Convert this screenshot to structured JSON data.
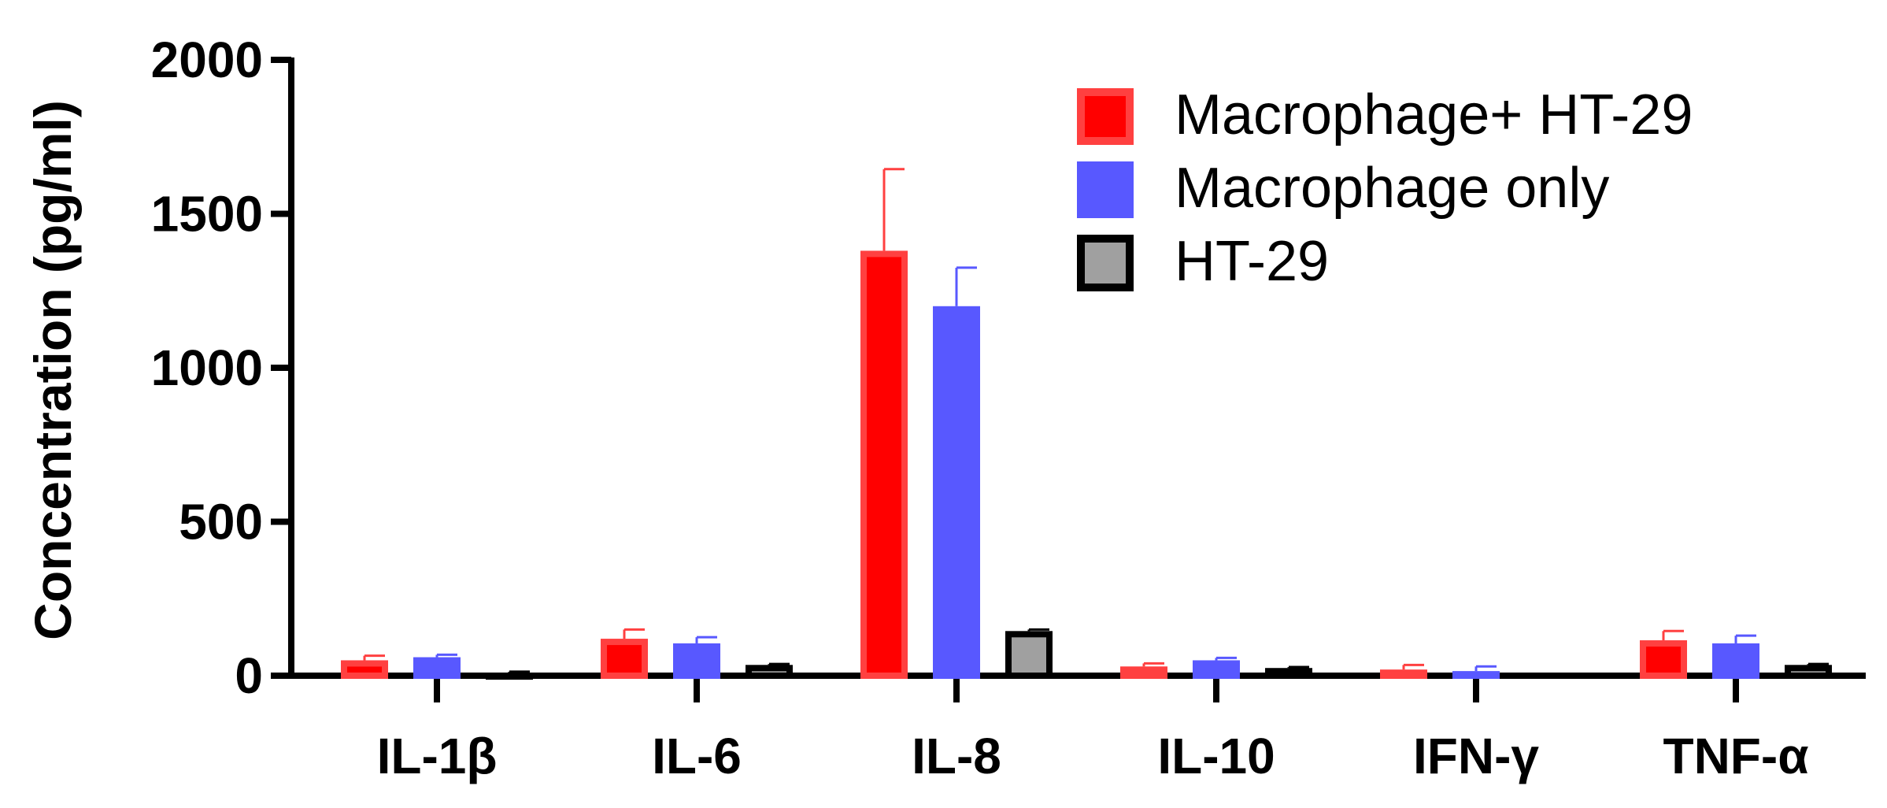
{
  "chart_data": {
    "type": "bar",
    "title": "",
    "xlabel": "",
    "ylabel": "Concentration (pg/ml)",
    "ylim": [
      0,
      2000
    ],
    "yticks": [
      0,
      500,
      1000,
      1500,
      2000
    ],
    "y_tick_labels": [
      "0",
      "500",
      "1000",
      "1500",
      "2000"
    ],
    "categories": [
      "IL-1β",
      "IL-6",
      "IL-8",
      "IL-10",
      "IFN-γ",
      "TNF-α"
    ],
    "legend_position": "top-right",
    "grid": false,
    "series": [
      {
        "name": "Macrophage+ HT-29",
        "color": "#ff0000",
        "edge_color": "#ff4040",
        "values": [
          50,
          120,
          1380,
          30,
          20,
          115
        ],
        "errors": [
          15,
          30,
          265,
          10,
          15,
          30
        ]
      },
      {
        "name": "Macrophage only",
        "color": "#5858ff",
        "edge_color": "#5858ff",
        "values": [
          60,
          105,
          1200,
          50,
          15,
          105
        ],
        "errors": [
          8,
          20,
          125,
          8,
          15,
          25
        ]
      },
      {
        "name": "HT-29",
        "color": "#a0a0a0",
        "edge_color": "#000000",
        "values": [
          10,
          35,
          145,
          25,
          0,
          35
        ],
        "errors": [
          3,
          3,
          5,
          3,
          0,
          3
        ]
      }
    ]
  }
}
